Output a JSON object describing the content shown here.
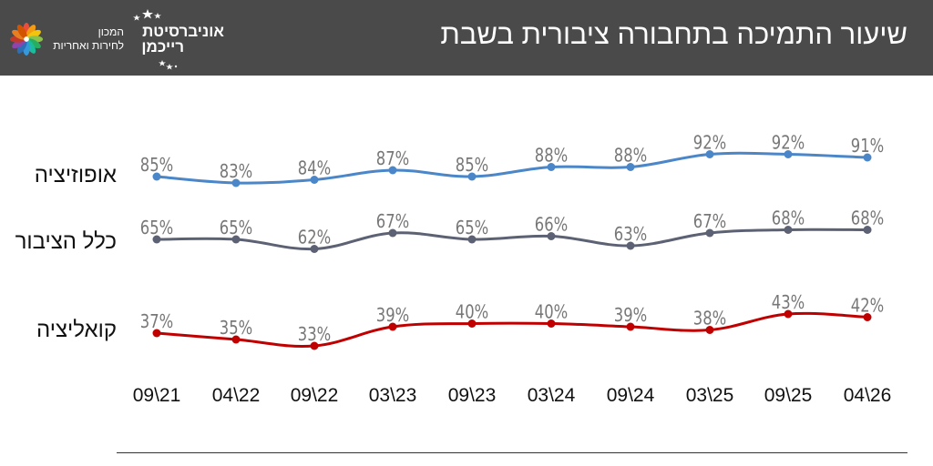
{
  "header": {
    "title": "שיעור התמיכה בתחבורה ציבורית בשבת",
    "institute_line1": "המכון",
    "institute_line2": "לחירות ואחריות",
    "university_line1": "אוניברסיטת",
    "university_line2": "רייכמן",
    "background_color": "#4a4a4a"
  },
  "chart_data": {
    "type": "line",
    "title": "שיעור התמיכה בתחבורה ציבורית בשבת",
    "xlabel": "",
    "ylabel": "",
    "unit": "%",
    "categories": [
      "09\\21",
      "04\\22",
      "09\\22",
      "03\\23",
      "09\\23",
      "03\\24",
      "09\\24",
      "03\\25",
      "09\\25",
      "04\\26"
    ],
    "series": [
      {
        "name": "אופוזיציה",
        "color": "#4a86c8",
        "values": [
          85,
          83,
          84,
          87,
          85,
          88,
          88,
          92,
          92,
          91
        ]
      },
      {
        "name": "כלל הציבור",
        "color": "#5c6173",
        "values": [
          65,
          65,
          62,
          67,
          65,
          66,
          63,
          67,
          68,
          68
        ]
      },
      {
        "name": "קואליציה",
        "color": "#c00000",
        "values": [
          37,
          35,
          33,
          39,
          40,
          40,
          39,
          38,
          43,
          42
        ]
      }
    ],
    "ylim": [
      20,
      100
    ],
    "grid": false,
    "legend": "row labels on left"
  }
}
